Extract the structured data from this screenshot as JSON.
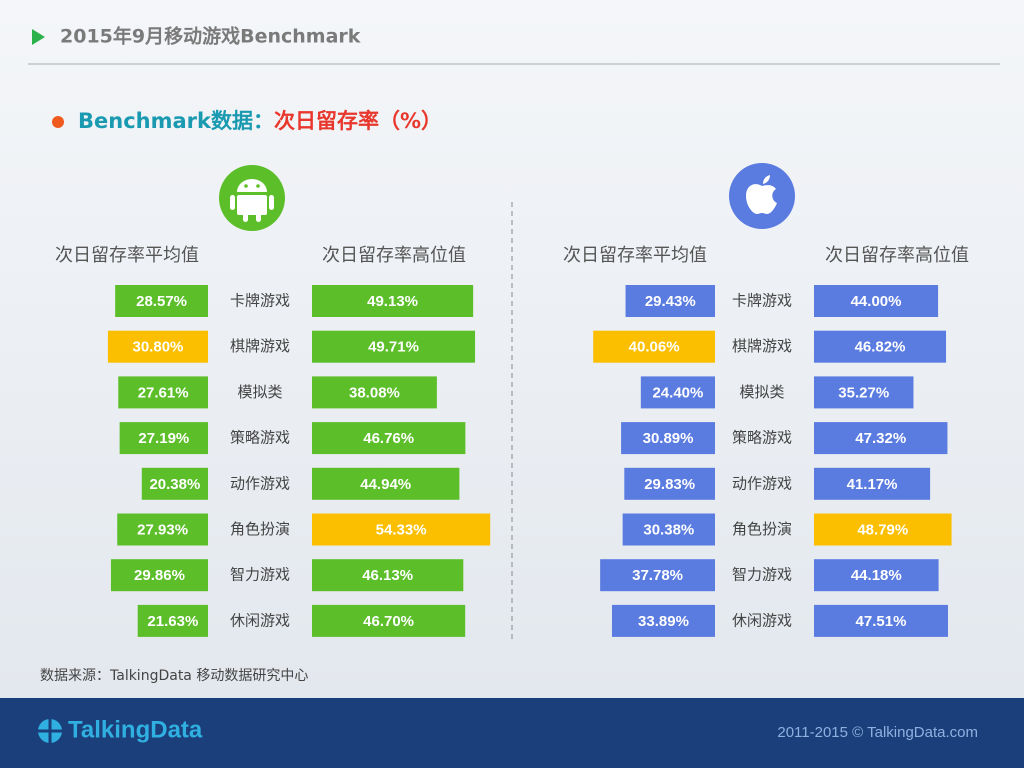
{
  "header": {
    "title": "2015年9月移动游戏Benchmark",
    "subtitle_lead": "Benchmark数据：",
    "subtitle_topic": "次日留存率（%）"
  },
  "chart_data": [
    {
      "type": "bar",
      "platform": "Android",
      "categories": [
        "卡牌游戏",
        "棋牌游戏",
        "模拟类",
        "策略游戏",
        "动作游戏",
        "角色扮演",
        "智力游戏",
        "休闲游戏"
      ],
      "series": [
        {
          "name": "次日留存率平均值",
          "values": [
            28.57,
            30.8,
            27.61,
            27.19,
            20.38,
            27.93,
            29.86,
            21.63
          ],
          "value_labels": [
            "28.57%",
            "30.80%",
            "27.61%",
            "27.19%",
            "20.38%",
            "27.93%",
            "29.86%",
            "21.63%"
          ],
          "colors": [
            "#5cbf2a",
            "#fbbf00",
            "#5cbf2a",
            "#5cbf2a",
            "#5cbf2a",
            "#5cbf2a",
            "#5cbf2a",
            "#5cbf2a"
          ]
        },
        {
          "name": "次日留存率高位值",
          "values": [
            49.13,
            49.71,
            38.08,
            46.76,
            44.94,
            54.33,
            46.13,
            46.7
          ],
          "value_labels": [
            "49.13%",
            "49.71%",
            "38.08%",
            "46.76%",
            "44.94%",
            "54.33%",
            "46.13%",
            "46.70%"
          ],
          "colors": [
            "#5cbf2a",
            "#5cbf2a",
            "#5cbf2a",
            "#5cbf2a",
            "#5cbf2a",
            "#fbbf00",
            "#5cbf2a",
            "#5cbf2a"
          ]
        }
      ]
    },
    {
      "type": "bar",
      "platform": "iOS",
      "categories": [
        "卡牌游戏",
        "棋牌游戏",
        "模拟类",
        "策略游戏",
        "动作游戏",
        "角色扮演",
        "智力游戏",
        "休闲游戏"
      ],
      "series": [
        {
          "name": "次日留存率平均值",
          "values": [
            29.43,
            40.06,
            24.4,
            30.89,
            29.83,
            30.38,
            37.78,
            33.89
          ],
          "value_labels": [
            "29.43%",
            "40.06%",
            "24.40%",
            "30.89%",
            "29.83%",
            "30.38%",
            "37.78%",
            "33.89%"
          ],
          "colors": [
            "#5a7be0",
            "#fbbf00",
            "#5a7be0",
            "#5a7be0",
            "#5a7be0",
            "#5a7be0",
            "#5a7be0",
            "#5a7be0"
          ]
        },
        {
          "name": "次日留存率高位值",
          "values": [
            44.0,
            46.82,
            35.27,
            47.32,
            41.17,
            48.79,
            44.18,
            47.51
          ],
          "value_labels": [
            "44.00%",
            "46.82%",
            "35.27%",
            "47.32%",
            "41.17%",
            "48.79%",
            "44.18%",
            "47.51%"
          ],
          "colors": [
            "#5a7be0",
            "#5a7be0",
            "#5a7be0",
            "#5a7be0",
            "#5a7be0",
            "#fbbf00",
            "#5a7be0",
            "#5a7be0"
          ]
        }
      ]
    }
  ],
  "source": "数据来源：TalkingData 移动数据研究中心",
  "footer": {
    "logo": "TalkingData",
    "copyright": "2011-2015 © TalkingData.com"
  }
}
